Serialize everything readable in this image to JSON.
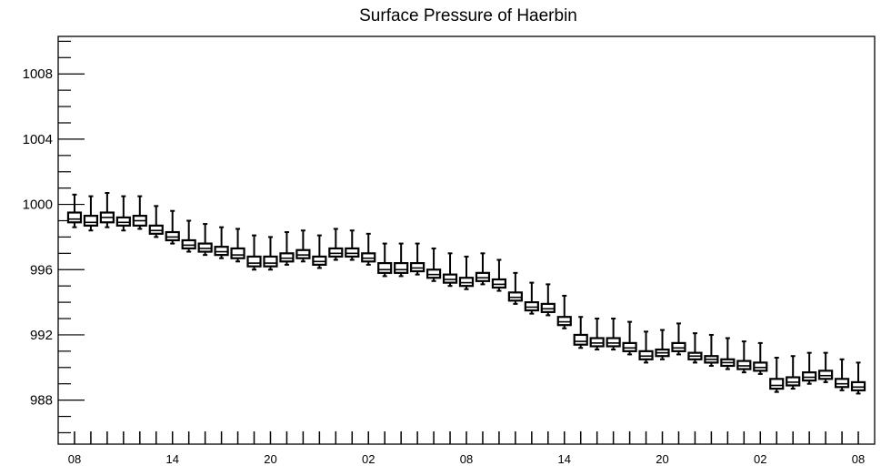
{
  "chart_data": {
    "type": "box",
    "title": "Surface Pressure of Haerbin",
    "xlabel": "",
    "ylabel": "",
    "ylim": [
      985.3,
      1010.3
    ],
    "yticks": [
      988,
      992,
      996,
      1000,
      1004,
      1008
    ],
    "ytick_labels": [
      "988",
      "992",
      "996",
      "1000",
      "1004",
      "1008"
    ],
    "x_tick_labels": [
      "08",
      "14",
      "20",
      "02",
      "08",
      "14",
      "20",
      "02",
      "08"
    ],
    "x_tick_positions": [
      0,
      6,
      12,
      18,
      24,
      30,
      36,
      42,
      48
    ],
    "x_range": [
      -1,
      49
    ],
    "grid": false,
    "boxes": [
      {
        "x": 0,
        "whisker_low": 998.6,
        "q1": 998.9,
        "median": 999.1,
        "q3": 999.5,
        "whisker_high": 1000.6
      },
      {
        "x": 1,
        "whisker_low": 998.4,
        "q1": 998.7,
        "median": 998.9,
        "q3": 999.3,
        "whisker_high": 1000.5
      },
      {
        "x": 2,
        "whisker_low": 998.6,
        "q1": 998.9,
        "median": 999.2,
        "q3": 999.5,
        "whisker_high": 1000.7
      },
      {
        "x": 3,
        "whisker_low": 998.4,
        "q1": 998.7,
        "median": 998.9,
        "q3": 999.2,
        "whisker_high": 1000.5
      },
      {
        "x": 4,
        "whisker_low": 998.5,
        "q1": 998.7,
        "median": 999.0,
        "q3": 999.3,
        "whisker_high": 1000.5
      },
      {
        "x": 5,
        "whisker_low": 998.0,
        "q1": 998.2,
        "median": 998.4,
        "q3": 998.7,
        "whisker_high": 999.9
      },
      {
        "x": 6,
        "whisker_low": 997.6,
        "q1": 997.8,
        "median": 998.0,
        "q3": 998.3,
        "whisker_high": 999.6
      },
      {
        "x": 7,
        "whisker_low": 997.1,
        "q1": 997.3,
        "median": 997.5,
        "q3": 997.8,
        "whisker_high": 999.0
      },
      {
        "x": 8,
        "whisker_low": 996.9,
        "q1": 997.1,
        "median": 997.3,
        "q3": 997.6,
        "whisker_high": 998.8
      },
      {
        "x": 9,
        "whisker_low": 996.7,
        "q1": 996.9,
        "median": 997.1,
        "q3": 997.4,
        "whisker_high": 998.6
      },
      {
        "x": 10,
        "whisker_low": 996.5,
        "q1": 996.7,
        "median": 996.9,
        "q3": 997.3,
        "whisker_high": 998.5
      },
      {
        "x": 11,
        "whisker_low": 996.0,
        "q1": 996.2,
        "median": 996.4,
        "q3": 996.8,
        "whisker_high": 998.1
      },
      {
        "x": 12,
        "whisker_low": 996.0,
        "q1": 996.2,
        "median": 996.4,
        "q3": 996.8,
        "whisker_high": 998.0
      },
      {
        "x": 13,
        "whisker_low": 996.3,
        "q1": 996.5,
        "median": 996.7,
        "q3": 997.0,
        "whisker_high": 998.3
      },
      {
        "x": 14,
        "whisker_low": 996.5,
        "q1": 996.7,
        "median": 996.9,
        "q3": 997.2,
        "whisker_high": 998.4
      },
      {
        "x": 15,
        "whisker_low": 996.1,
        "q1": 996.3,
        "median": 996.5,
        "q3": 996.8,
        "whisker_high": 998.1
      },
      {
        "x": 16,
        "whisker_low": 996.6,
        "q1": 996.8,
        "median": 997.0,
        "q3": 997.3,
        "whisker_high": 998.5
      },
      {
        "x": 17,
        "whisker_low": 996.6,
        "q1": 996.8,
        "median": 997.0,
        "q3": 997.3,
        "whisker_high": 998.4
      },
      {
        "x": 18,
        "whisker_low": 996.3,
        "q1": 996.5,
        "median": 996.7,
        "q3": 997.0,
        "whisker_high": 998.2
      },
      {
        "x": 19,
        "whisker_low": 995.6,
        "q1": 995.8,
        "median": 996.0,
        "q3": 996.4,
        "whisker_high": 997.6
      },
      {
        "x": 20,
        "whisker_low": 995.6,
        "q1": 995.8,
        "median": 996.0,
        "q3": 996.4,
        "whisker_high": 997.6
      },
      {
        "x": 21,
        "whisker_low": 995.7,
        "q1": 995.9,
        "median": 996.1,
        "q3": 996.4,
        "whisker_high": 997.6
      },
      {
        "x": 22,
        "whisker_low": 995.3,
        "q1": 995.5,
        "median": 995.7,
        "q3": 996.0,
        "whisker_high": 997.3
      },
      {
        "x": 23,
        "whisker_low": 995.0,
        "q1": 995.2,
        "median": 995.4,
        "q3": 995.7,
        "whisker_high": 997.0
      },
      {
        "x": 24,
        "whisker_low": 994.8,
        "q1": 995.0,
        "median": 995.2,
        "q3": 995.5,
        "whisker_high": 996.8
      },
      {
        "x": 25,
        "whisker_low": 995.1,
        "q1": 995.3,
        "median": 995.5,
        "q3": 995.8,
        "whisker_high": 997.0
      },
      {
        "x": 26,
        "whisker_low": 994.7,
        "q1": 994.9,
        "median": 995.1,
        "q3": 995.4,
        "whisker_high": 996.6
      },
      {
        "x": 27,
        "whisker_low": 993.9,
        "q1": 994.1,
        "median": 994.3,
        "q3": 994.6,
        "whisker_high": 995.8
      },
      {
        "x": 28,
        "whisker_low": 993.3,
        "q1": 993.5,
        "median": 993.7,
        "q3": 994.0,
        "whisker_high": 995.2
      },
      {
        "x": 29,
        "whisker_low": 993.2,
        "q1": 993.4,
        "median": 993.6,
        "q3": 993.9,
        "whisker_high": 995.1
      },
      {
        "x": 30,
        "whisker_low": 992.4,
        "q1": 992.6,
        "median": 992.8,
        "q3": 993.1,
        "whisker_high": 994.4
      },
      {
        "x": 31,
        "whisker_low": 991.2,
        "q1": 991.4,
        "median": 991.6,
        "q3": 992.0,
        "whisker_high": 993.1
      },
      {
        "x": 32,
        "whisker_low": 991.1,
        "q1": 991.3,
        "median": 991.5,
        "q3": 991.8,
        "whisker_high": 993.0
      },
      {
        "x": 33,
        "whisker_low": 991.1,
        "q1": 991.3,
        "median": 991.5,
        "q3": 991.8,
        "whisker_high": 993.0
      },
      {
        "x": 34,
        "whisker_low": 990.8,
        "q1": 991.0,
        "median": 991.2,
        "q3": 991.5,
        "whisker_high": 992.8
      },
      {
        "x": 35,
        "whisker_low": 990.3,
        "q1": 990.5,
        "median": 990.7,
        "q3": 991.0,
        "whisker_high": 992.2
      },
      {
        "x": 36,
        "whisker_low": 990.5,
        "q1": 990.7,
        "median": 990.9,
        "q3": 991.1,
        "whisker_high": 992.3
      },
      {
        "x": 37,
        "whisker_low": 990.8,
        "q1": 991.0,
        "median": 991.2,
        "q3": 991.5,
        "whisker_high": 992.7
      },
      {
        "x": 38,
        "whisker_low": 990.3,
        "q1": 990.5,
        "median": 990.7,
        "q3": 990.9,
        "whisker_high": 992.1
      },
      {
        "x": 39,
        "whisker_low": 990.1,
        "q1": 990.3,
        "median": 990.5,
        "q3": 990.7,
        "whisker_high": 992.0
      },
      {
        "x": 40,
        "whisker_low": 989.9,
        "q1": 990.1,
        "median": 990.3,
        "q3": 990.5,
        "whisker_high": 991.8
      },
      {
        "x": 41,
        "whisker_low": 989.7,
        "q1": 989.9,
        "median": 990.1,
        "q3": 990.4,
        "whisker_high": 991.6
      },
      {
        "x": 42,
        "whisker_low": 989.6,
        "q1": 989.8,
        "median": 990.0,
        "q3": 990.3,
        "whisker_high": 991.5
      },
      {
        "x": 43,
        "whisker_low": 988.5,
        "q1": 988.7,
        "median": 988.9,
        "q3": 989.3,
        "whisker_high": 990.6
      },
      {
        "x": 44,
        "whisker_low": 988.7,
        "q1": 988.9,
        "median": 989.1,
        "q3": 989.4,
        "whisker_high": 990.7
      },
      {
        "x": 45,
        "whisker_low": 989.0,
        "q1": 989.2,
        "median": 989.4,
        "q3": 989.7,
        "whisker_high": 990.9
      },
      {
        "x": 46,
        "whisker_low": 989.1,
        "q1": 989.3,
        "median": 989.5,
        "q3": 989.8,
        "whisker_high": 990.9
      },
      {
        "x": 47,
        "whisker_low": 988.6,
        "q1": 988.8,
        "median": 989.0,
        "q3": 989.3,
        "whisker_high": 990.5
      },
      {
        "x": 48,
        "whisker_low": 988.4,
        "q1": 988.6,
        "median": 988.8,
        "q3": 989.1,
        "whisker_high": 990.3
      }
    ]
  },
  "colors": {
    "background": "#ffffff",
    "axis": "#000000",
    "box_stroke": "#000000",
    "box_fill": "#ffffff"
  }
}
